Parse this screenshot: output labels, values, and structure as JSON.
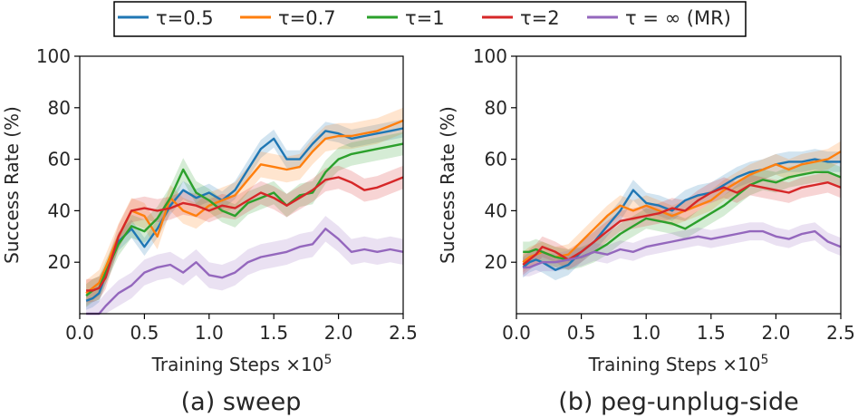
{
  "legend": [
    {
      "name": "τ=0.5",
      "color": "#1f77b4"
    },
    {
      "name": "τ=0.7",
      "color": "#ff7f0e"
    },
    {
      "name": "τ=1",
      "color": "#2ca02c"
    },
    {
      "name": "τ=2",
      "color": "#d62728"
    },
    {
      "name": "τ = ∞ (MR)",
      "color": "#9467bd"
    }
  ],
  "chart_data": [
    {
      "type": "line",
      "title": "(a) sweep",
      "xlabel": "Training Steps ×10",
      "xlabel_exponent": "5",
      "ylabel": "Success Rate (%)",
      "xlim": [
        0.0,
        2.5
      ],
      "ylim": [
        0,
        100
      ],
      "xticks": [
        "0.0",
        "0.5",
        "1.0",
        "1.5",
        "2.0",
        "2.5"
      ],
      "yticks": [
        "20",
        "40",
        "60",
        "80",
        "100"
      ],
      "x": [
        0.05,
        0.1,
        0.15,
        0.2,
        0.3,
        0.4,
        0.5,
        0.6,
        0.7,
        0.8,
        0.9,
        1.0,
        1.1,
        1.2,
        1.3,
        1.4,
        1.5,
        1.6,
        1.7,
        1.8,
        1.9,
        2.0,
        2.1,
        2.2,
        2.3,
        2.4,
        2.5
      ],
      "series": [
        {
          "name": "τ=0.5",
          "color": "#1f77b4",
          "values": [
            5,
            6,
            8,
            15,
            28,
            33,
            26,
            33,
            42,
            48,
            45,
            47,
            44,
            48,
            56,
            64,
            68,
            60,
            60,
            66,
            71,
            70,
            68,
            69,
            70,
            71,
            72
          ]
        },
        {
          "name": "τ=0.7",
          "color": "#ff7f0e",
          "values": [
            8,
            10,
            12,
            18,
            30,
            40,
            38,
            30,
            45,
            40,
            38,
            42,
            44,
            46,
            52,
            58,
            57,
            56,
            57,
            63,
            68,
            69,
            69,
            70,
            71,
            73,
            75
          ]
        },
        {
          "name": "τ=1",
          "color": "#2ca02c",
          "values": [
            7,
            9,
            10,
            16,
            27,
            34,
            32,
            37,
            45,
            56,
            47,
            44,
            40,
            38,
            43,
            45,
            47,
            42,
            46,
            47,
            55,
            60,
            62,
            63,
            64,
            65,
            66
          ]
        },
        {
          "name": "τ=2",
          "color": "#d62728",
          "values": [
            9,
            9,
            10,
            14,
            30,
            40,
            41,
            40,
            41,
            43,
            42,
            40,
            42,
            41,
            44,
            47,
            45,
            42,
            45,
            48,
            52,
            53,
            51,
            48,
            49,
            51,
            53
          ]
        },
        {
          "name": "τ = ∞ (MR)",
          "color": "#9467bd",
          "values": [
            0,
            0,
            0,
            3,
            8,
            11,
            16,
            18,
            19,
            16,
            20,
            15,
            14,
            16,
            20,
            22,
            23,
            24,
            26,
            27,
            33,
            29,
            24,
            25,
            24,
            25,
            24
          ]
        }
      ]
    },
    {
      "type": "line",
      "title": "(b) peg-unplug-side",
      "xlabel": "Training Steps ×10",
      "xlabel_exponent": "5",
      "ylabel": "Success Rate (%)",
      "xlim": [
        0.0,
        2.5
      ],
      "ylim": [
        0,
        100
      ],
      "xticks": [
        "0.0",
        "0.5",
        "1.0",
        "1.5",
        "2.0",
        "2.5"
      ],
      "yticks": [
        "20",
        "40",
        "60",
        "80",
        "100"
      ],
      "x": [
        0.05,
        0.1,
        0.15,
        0.2,
        0.3,
        0.4,
        0.5,
        0.6,
        0.7,
        0.8,
        0.9,
        1.0,
        1.1,
        1.2,
        1.3,
        1.4,
        1.5,
        1.6,
        1.7,
        1.8,
        1.9,
        2.0,
        2.1,
        2.2,
        2.3,
        2.4,
        2.5
      ],
      "series": [
        {
          "name": "τ=0.5",
          "color": "#1f77b4",
          "values": [
            18,
            20,
            21,
            20,
            17,
            19,
            24,
            28,
            34,
            40,
            48,
            43,
            42,
            40,
            44,
            46,
            47,
            50,
            53,
            55,
            56,
            58,
            59,
            59,
            60,
            59,
            59
          ]
        },
        {
          "name": "τ=0.7",
          "color": "#ff7f0e",
          "values": [
            20,
            22,
            23,
            24,
            22,
            23,
            28,
            33,
            38,
            42,
            40,
            42,
            40,
            38,
            40,
            42,
            44,
            48,
            51,
            54,
            56,
            58,
            56,
            58,
            59,
            60,
            63
          ]
        },
        {
          "name": "τ=1",
          "color": "#2ca02c",
          "values": [
            24,
            24,
            25,
            24,
            22,
            21,
            22,
            24,
            27,
            31,
            34,
            37,
            36,
            35,
            33,
            36,
            39,
            42,
            46,
            50,
            52,
            51,
            53,
            54,
            55,
            55,
            53
          ]
        },
        {
          "name": "τ=2",
          "color": "#d62728",
          "values": [
            19,
            21,
            23,
            26,
            24,
            21,
            24,
            28,
            32,
            36,
            37,
            38,
            39,
            41,
            40,
            44,
            47,
            49,
            47,
            50,
            49,
            48,
            47,
            49,
            50,
            51,
            49
          ]
        },
        {
          "name": "τ = ∞ (MR)",
          "color": "#9467bd",
          "values": [
            18,
            18,
            19,
            20,
            20,
            21,
            22,
            24,
            23,
            25,
            24,
            26,
            27,
            28,
            29,
            30,
            29,
            30,
            31,
            32,
            32,
            30,
            29,
            31,
            32,
            28,
            26
          ]
        }
      ]
    }
  ]
}
